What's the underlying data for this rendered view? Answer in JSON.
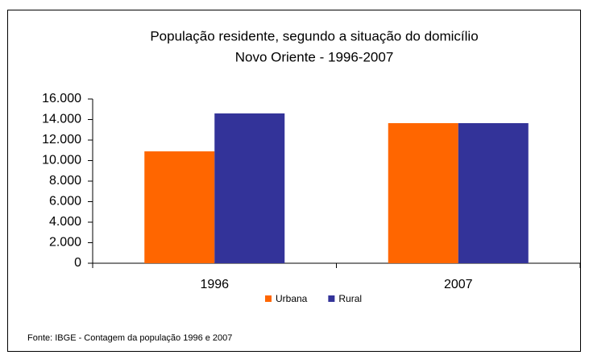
{
  "chart_data": {
    "type": "bar",
    "title": "População residente, segundo a situação do domicílio",
    "subtitle": "Novo Oriente - 1996-2007",
    "categories": [
      "1996",
      "2007"
    ],
    "series": [
      {
        "name": "Urbana",
        "color": "#ff6600",
        "values": [
          10900,
          13650
        ]
      },
      {
        "name": "Rural",
        "color": "#333399",
        "values": [
          14600,
          13650
        ]
      }
    ],
    "ylim": [
      0,
      16000
    ],
    "yticks": [
      0,
      {
        "value": 2000,
        "label": "2.000"
      },
      {
        "value": 4000,
        "label": "4.000"
      },
      {
        "value": 6000,
        "label": "6.000"
      },
      {
        "value": 8000,
        "label": "8.000"
      },
      {
        "value": 10000,
        "label": "10.000"
      },
      {
        "value": 12000,
        "label": "12.000"
      },
      {
        "value": 14000,
        "label": "14.000"
      },
      {
        "value": 16000,
        "label": "16.000"
      }
    ],
    "grid": false,
    "legend": "bottom",
    "source": "Fonte: IBGE - Contagem da população 1996 e 2007"
  }
}
